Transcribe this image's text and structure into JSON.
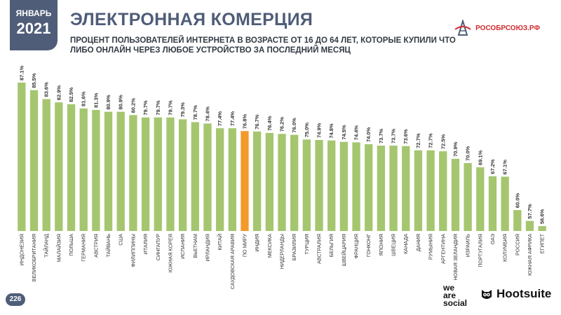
{
  "header": {
    "month": "ЯНВАРЬ",
    "year": "2021",
    "title": "ЭЛЕКТРОННАЯ КОМЕРЦИЯ",
    "subtitle": "ПРОЦЕНТ ПОЛЬЗОВАТЕЛЕЙ ИНТЕРНЕТА В ВОЗРАСТЕ ОТ 16 ДО 64 ЛЕТ, КОТОРЫЕ КУПИЛИ ЧТО ЛИБО ОНЛАЙН ЧЕРЕЗ ЛЮБОЕ УСТРОЙСТВО ЗА ПОСЛЕДНИЙ МЕСЯЦ"
  },
  "brand_top": {
    "text": "РОСОБРСОЮЗ.РФ",
    "icon": "tower-icon"
  },
  "footer": {
    "page_number": "226",
    "logo_lines": [
      "we",
      "are",
      "social"
    ],
    "hootsuite": "Hootsuite",
    "hootsuite_icon": "owl-icon"
  },
  "colors": {
    "bar": "#a5c66f",
    "highlight": "#f39a2c",
    "header": "#4f5d78",
    "brand_red": "#d02b2f"
  },
  "chart_data": {
    "type": "bar",
    "highlight_category": "ПО МИРУ",
    "value_suffix": "%",
    "categories": [
      "ИНДОНЕЗИЯ",
      "ВЕЛИКОБРИТАНИЯ",
      "ТАЙЛАНД",
      "МАЛАЙЗИЯ",
      "ПОЛЬША",
      "ГЕРМАНИЯ",
      "АВСТРИЯ",
      "ТАЙВАНЬ",
      "США",
      "ФИЛИППИНЫ",
      "ИТАЛИЯ",
      "СИНГАПУР",
      "ЮЖНАЯ КОРЕЯ",
      "ИСПАНИЯ",
      "ВЬЕТНАМ",
      "ИРЛАНДИЯ",
      "КИТАЙ",
      "САУДОВСКАЯ АРАВИЯ",
      "ПО МИРУ",
      "ИНДИЯ",
      "МЕКСИКА",
      "НИДЕРЛАНДЫ",
      "БРАЗИЛИЯ",
      "ТУРЦИЯ",
      "АВСТРАЛИЯ",
      "БЕЛЬГИЯ",
      "ШВЕЙЦАРИЯ",
      "ФРАНЦИЯ",
      "ГОНКОНГ",
      "ЯПОНИЯ",
      "ШВЕЦИЯ",
      "КАНАДА",
      "ДАНИЯ",
      "РУМЫНИЯ",
      "АРГЕНТИНА",
      "НОВАЯ ЗЕЛАНДИЯ",
      "ИЗРАИЛЬ",
      "ПОРТУГАЛИЯ",
      "ОАЭ",
      "КОЛУМБИЯ",
      "РОССИЯ",
      "ЮЖНАЯ АФРИКА",
      "ЕГИПЕТ"
    ],
    "values": [
      87.1,
      85.5,
      83.6,
      82.9,
      82.5,
      81.6,
      81.3,
      80.9,
      80.9,
      80.2,
      79.7,
      79.7,
      79.7,
      79.3,
      78.7,
      78.4,
      77.4,
      77.4,
      76.8,
      76.7,
      76.4,
      76.2,
      76.0,
      75.0,
      74.9,
      74.8,
      74.5,
      74.4,
      74.0,
      73.7,
      73.7,
      73.6,
      72.7,
      72.7,
      72.5,
      70.9,
      70.0,
      69.1,
      67.2,
      67.1,
      60.0,
      57.7,
      56.6
    ],
    "title": "",
    "xlabel": "",
    "ylabel": ""
  }
}
